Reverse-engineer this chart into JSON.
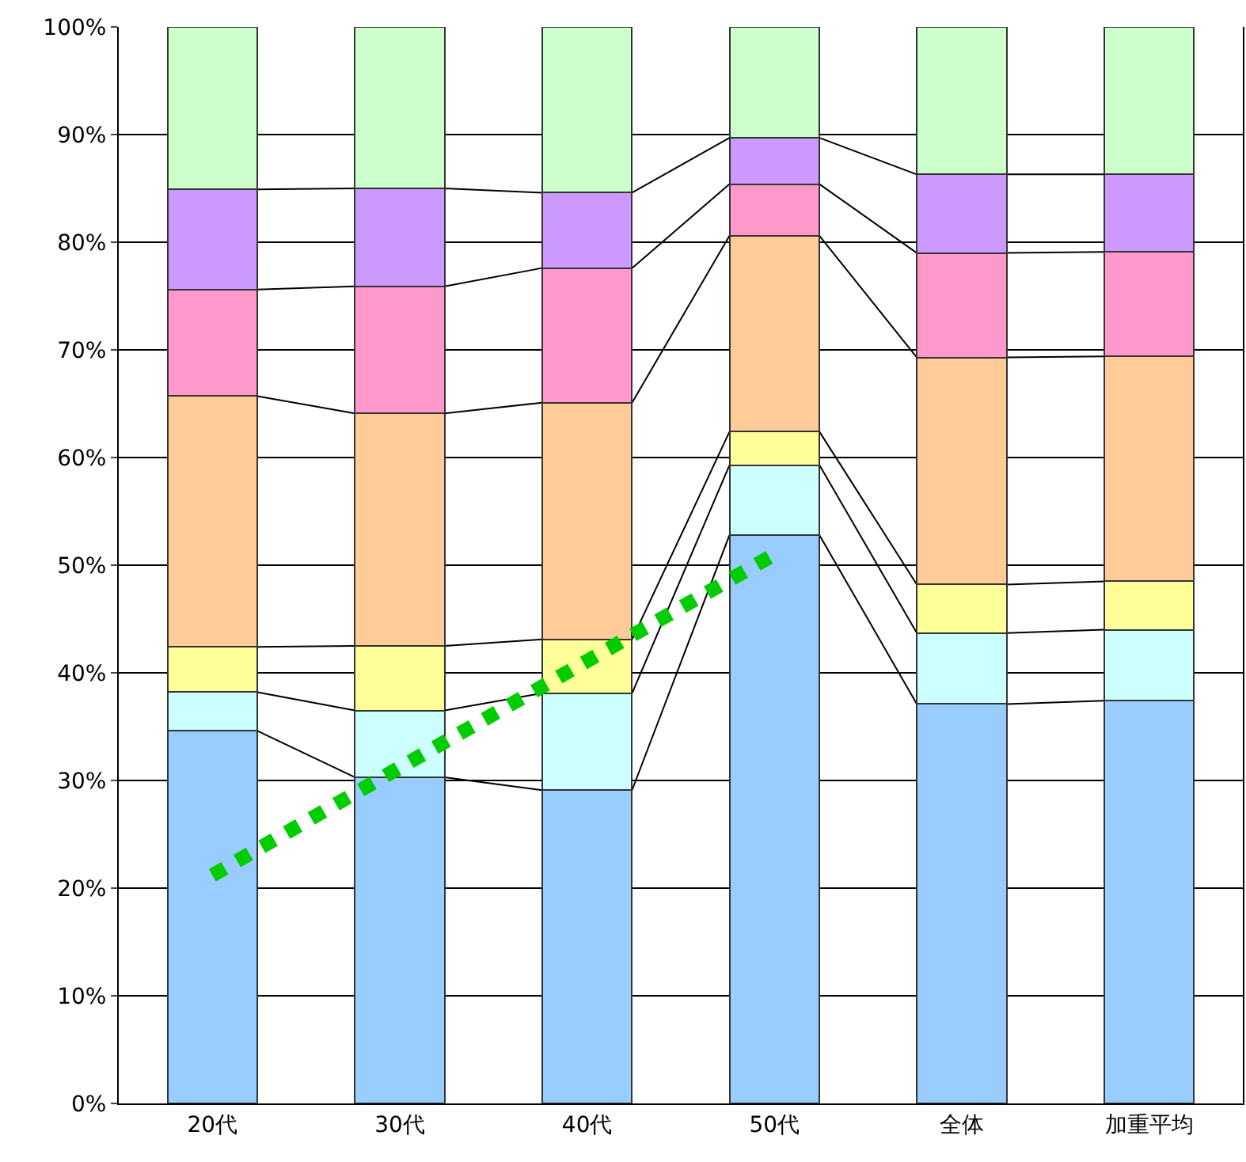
{
  "chart_data": {
    "type": "bar",
    "stacked": true,
    "categories": [
      "20代",
      "30代",
      "40代",
      "50代",
      "全体",
      "加重平均"
    ],
    "series": [
      {
        "color": "#99ccff",
        "values": [
          34.6,
          30.3,
          29.1,
          52.8,
          37.1,
          37.4
        ]
      },
      {
        "color": "#ccffff",
        "values": [
          3.6,
          6.2,
          9.0,
          6.5,
          6.6,
          6.6
        ]
      },
      {
        "color": "#ffff99",
        "values": [
          4.2,
          6.0,
          5.0,
          3.1,
          4.5,
          4.5
        ]
      },
      {
        "color": "#ffcc99",
        "values": [
          23.3,
          21.6,
          22.0,
          18.2,
          21.1,
          20.9
        ]
      },
      {
        "color": "#ff99cc",
        "values": [
          9.9,
          11.8,
          12.5,
          4.8,
          9.7,
          9.7
        ]
      },
      {
        "color": "#cc99ff",
        "values": [
          9.3,
          9.1,
          7.0,
          4.3,
          7.3,
          7.2
        ]
      },
      {
        "color": "#ccffcc",
        "values": [
          15.1,
          15.0,
          15.4,
          10.3,
          13.7,
          13.7
        ]
      },
      {
        "type": "line",
        "color": "#00cc00",
        "line_style": "dotted",
        "values": [
          21.2,
          31.2,
          41.1,
          51.0,
          null,
          null
        ]
      }
    ],
    "ylim": [
      0,
      100
    ],
    "yticks": [
      {
        "value": 0,
        "label": "0%"
      },
      {
        "value": 10,
        "label": "10%"
      },
      {
        "value": 20,
        "label": "20%"
      },
      {
        "value": 30,
        "label": "30%"
      },
      {
        "value": 40,
        "label": "40%"
      },
      {
        "value": 50,
        "label": "50%"
      },
      {
        "value": 60,
        "label": "60%"
      },
      {
        "value": 70,
        "label": "70%"
      },
      {
        "value": 80,
        "label": "80%"
      },
      {
        "value": 90,
        "label": "90%"
      },
      {
        "value": 100,
        "label": "100%"
      }
    ],
    "grid": "y"
  }
}
